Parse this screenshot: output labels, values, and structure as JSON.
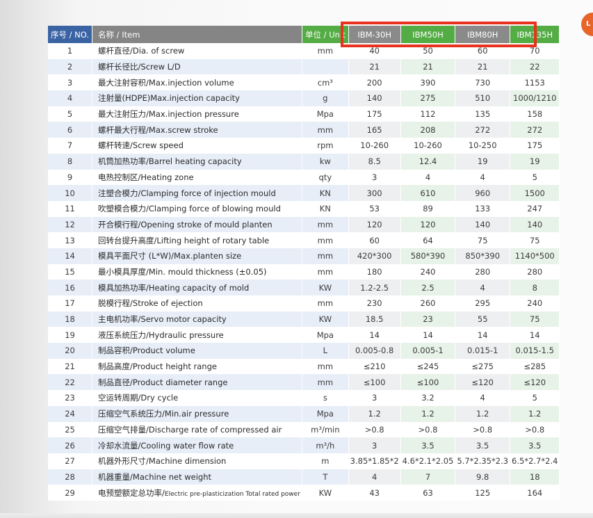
{
  "header": {
    "no": "序号 / NO.",
    "item": "名称 / Item",
    "unit": "单位 / Unit",
    "models": [
      "IBM-30H",
      "IBM50H",
      "IBM80H",
      "IBM135H"
    ]
  },
  "rows": [
    {
      "no": "1",
      "item": "螺杆直径/Dia. of screw",
      "unit": "mm",
      "v": [
        "40",
        "50",
        "60",
        "70"
      ]
    },
    {
      "no": "2",
      "item": "螺杆长径比/Screw L/D",
      "unit": "",
      "v": [
        "21",
        "21",
        "21",
        "22"
      ]
    },
    {
      "no": "3",
      "item": "最大注射容积/Max.injection volume",
      "unit": "cm³",
      "v": [
        "200",
        "390",
        "730",
        "1153"
      ]
    },
    {
      "no": "4",
      "item": "注射量(HDPE)Max.injection capacity",
      "unit": "g",
      "v": [
        "140",
        "275",
        "510",
        "1000/1210"
      ]
    },
    {
      "no": "5",
      "item": "最大注射压力/Max.injection pressure",
      "unit": "Mpa",
      "v": [
        "175",
        "112",
        "135",
        "158"
      ]
    },
    {
      "no": "6",
      "item": "螺杆最大行程/Max.screw stroke",
      "unit": "mm",
      "v": [
        "165",
        "208",
        "272",
        "272"
      ]
    },
    {
      "no": "7",
      "item": "螺杆转速/Screw speed",
      "unit": "rpm",
      "v": [
        "10-260",
        "10-260",
        "10-250",
        "175"
      ]
    },
    {
      "no": "8",
      "item": "机筒加热功率/Barrel heating capacity",
      "unit": "kw",
      "v": [
        "8.5",
        "12.4",
        "19",
        "19"
      ]
    },
    {
      "no": "9",
      "item": "电热控制区/Heating zone",
      "unit": "qty",
      "v": [
        "3",
        "4",
        "4",
        "5"
      ]
    },
    {
      "no": "10",
      "item": "注塑合模力/Clamping force of injection mould",
      "unit": "KN",
      "v": [
        "300",
        "610",
        "960",
        "1500"
      ]
    },
    {
      "no": "11",
      "item": "吹塑模合模力/Clamping force of blowing mould",
      "unit": "KN",
      "v": [
        "53",
        "89",
        "133",
        "247"
      ]
    },
    {
      "no": "12",
      "item": "开合模行程/Opening stroke of mould planten",
      "unit": "mm",
      "v": [
        "120",
        "120",
        "140",
        "140"
      ]
    },
    {
      "no": "13",
      "item": "回转台提升高度/Lifting height of rotary table",
      "unit": "mm",
      "v": [
        "60",
        "64",
        "75",
        "75"
      ]
    },
    {
      "no": "14",
      "item": "模具平面尺寸 (L*W)/Max.planten size",
      "unit": "mm",
      "v": [
        "420*300",
        "580*390",
        "850*390",
        "1140*500"
      ]
    },
    {
      "no": "15",
      "item": "最小模具厚度/Min. mould thickness (±0.05)",
      "unit": "mm",
      "v": [
        "180",
        "240",
        "280",
        "280"
      ]
    },
    {
      "no": "16",
      "item": "模具加热功率/Heating capacity of mold",
      "unit": "KW",
      "v": [
        "1.2-2.5",
        "2.5",
        "4",
        "8"
      ]
    },
    {
      "no": "17",
      "item": "脱模行程/Stroke of ejection",
      "unit": "mm",
      "v": [
        "230",
        "260",
        "295",
        "240"
      ]
    },
    {
      "no": "18",
      "item": "主电机功率/Servo motor capacity",
      "unit": "KW",
      "v": [
        "18.5",
        "23",
        "55",
        "75"
      ]
    },
    {
      "no": "19",
      "item": "液压系统压力/Hydraulic pressure",
      "unit": "Mpa",
      "v": [
        "14",
        "14",
        "14",
        "14"
      ]
    },
    {
      "no": "20",
      "item": "制品容积/Product volume",
      "unit": "L",
      "v": [
        "0.005-0.8",
        "0.005-1",
        "0.015-1",
        "0.015-1.5"
      ]
    },
    {
      "no": "21",
      "item": "制品高度/Product height range",
      "unit": "mm",
      "v": [
        "≤210",
        "≤245",
        "≤275",
        "≤285"
      ]
    },
    {
      "no": "22",
      "item": "制品直径/Product diameter range",
      "unit": "mm",
      "v": [
        "≤100",
        "≤100",
        "≤120",
        "≤120"
      ]
    },
    {
      "no": "23",
      "item": "空运转周期/Dry cycle",
      "unit": "s",
      "v": [
        "3",
        "3.2",
        "4",
        "5"
      ]
    },
    {
      "no": "24",
      "item": "压缩空气系统压力/Min.air pressure",
      "unit": "Mpa",
      "v": [
        "1.2",
        "1.2",
        "1.2",
        "1.2"
      ]
    },
    {
      "no": "25",
      "item": "压缩空气排量/Discharge rate of compressed air",
      "unit": "m³/min",
      "v": [
        ">0.8",
        ">0.8",
        ">0.8",
        ">0.8"
      ]
    },
    {
      "no": "26",
      "item": "冷却水流量/Cooling water flow rate",
      "unit": "m³/h",
      "v": [
        "3",
        "3.5",
        "3.5",
        "3.5"
      ]
    },
    {
      "no": "27",
      "item": "机器外形尺寸/Machine dimension",
      "unit": "m",
      "v": [
        "3.85*1.85*2",
        "4.6*2.1*2.05",
        "5.7*2.35*2.3",
        "6.5*2.7*2.4"
      ]
    },
    {
      "no": "28",
      "item": "机器重量/Machine net weight",
      "unit": "T",
      "v": [
        "4",
        "7",
        "9.8",
        "18"
      ]
    },
    {
      "no": "29",
      "item_main": "电预塑额定总功率/",
      "item_small": "Electric pre-plasticization Total rated power",
      "unit": "KW",
      "v": [
        "43",
        "63",
        "125",
        "164"
      ]
    }
  ],
  "badge": "L",
  "colors": {
    "accent_blue": "#3a63a4",
    "accent_green": "#54ac45",
    "highlight_red": "#e8321d"
  }
}
